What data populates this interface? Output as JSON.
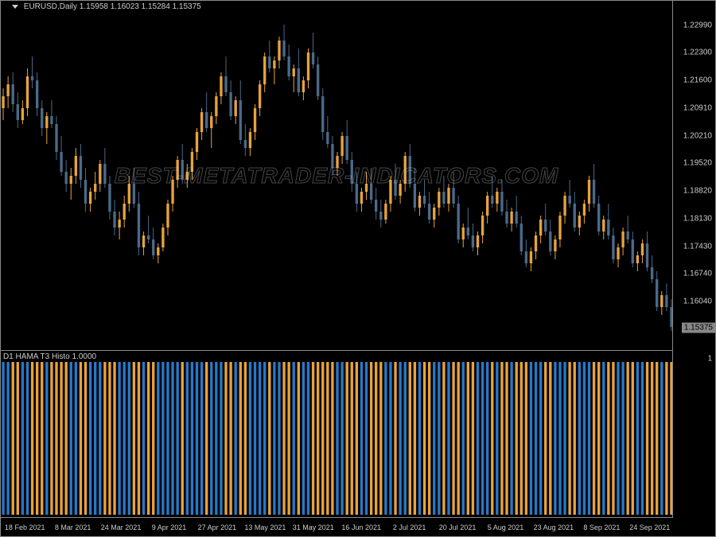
{
  "chart": {
    "title_symbol": "EURUSD,Daily",
    "title_ohlc": "1.15958 1.16023 1.15284 1.15375",
    "watermark": "BEST-METATRADER-INDICATORS.COM",
    "background_color": "#000000",
    "border_color": "#888888",
    "text_color": "#cccccc",
    "bull_color": "#e8a33c",
    "bear_color": "#4a6a8a",
    "wick_color": "#888888",
    "price_axis": {
      "ticks": [
        1.2299,
        1.223,
        1.216,
        1.2091,
        1.2021,
        1.1952,
        1.1882,
        1.1813,
        1.1743,
        1.1674,
        1.1604
      ],
      "current_badge": 1.15375,
      "min": 1.15,
      "max": 1.234
    },
    "time_axis": {
      "labels": [
        "18 Feb 2021",
        "8 Mar 2021",
        "24 Mar 2021",
        "9 Apr 2021",
        "27 Apr 2021",
        "13 May 2021",
        "31 May 2021",
        "16 Jun 2021",
        "2 Jul 2021",
        "20 Jul 2021",
        "5 Aug 2021",
        "23 Aug 2021",
        "8 Sep 2021",
        "24 Sep 2021"
      ]
    },
    "candles": [
      {
        "o": 1.209,
        "h": 1.214,
        "l": 1.206,
        "c": 1.212,
        "d": 1
      },
      {
        "o": 1.212,
        "h": 1.217,
        "l": 1.209,
        "c": 1.215,
        "d": 1
      },
      {
        "o": 1.215,
        "h": 1.218,
        "l": 1.208,
        "c": 1.21,
        "d": -1
      },
      {
        "o": 1.21,
        "h": 1.213,
        "l": 1.204,
        "c": 1.206,
        "d": -1
      },
      {
        "o": 1.206,
        "h": 1.211,
        "l": 1.205,
        "c": 1.209,
        "d": 1
      },
      {
        "o": 1.209,
        "h": 1.219,
        "l": 1.207,
        "c": 1.217,
        "d": 1
      },
      {
        "o": 1.217,
        "h": 1.222,
        "l": 1.214,
        "c": 1.216,
        "d": -1
      },
      {
        "o": 1.216,
        "h": 1.218,
        "l": 1.207,
        "c": 1.209,
        "d": -1
      },
      {
        "o": 1.209,
        "h": 1.211,
        "l": 1.202,
        "c": 1.204,
        "d": -1
      },
      {
        "o": 1.204,
        "h": 1.208,
        "l": 1.2,
        "c": 1.207,
        "d": 1
      },
      {
        "o": 1.207,
        "h": 1.211,
        "l": 1.204,
        "c": 1.205,
        "d": -1
      },
      {
        "o": 1.205,
        "h": 1.207,
        "l": 1.196,
        "c": 1.198,
        "d": -1
      },
      {
        "o": 1.198,
        "h": 1.202,
        "l": 1.192,
        "c": 1.193,
        "d": -1
      },
      {
        "o": 1.193,
        "h": 1.196,
        "l": 1.188,
        "c": 1.19,
        "d": -1
      },
      {
        "o": 1.19,
        "h": 1.194,
        "l": 1.186,
        "c": 1.192,
        "d": 1
      },
      {
        "o": 1.192,
        "h": 1.199,
        "l": 1.19,
        "c": 1.197,
        "d": 1
      },
      {
        "o": 1.197,
        "h": 1.2,
        "l": 1.189,
        "c": 1.191,
        "d": -1
      },
      {
        "o": 1.191,
        "h": 1.194,
        "l": 1.183,
        "c": 1.185,
        "d": -1
      },
      {
        "o": 1.185,
        "h": 1.189,
        "l": 1.183,
        "c": 1.188,
        "d": 1
      },
      {
        "o": 1.188,
        "h": 1.193,
        "l": 1.186,
        "c": 1.19,
        "d": 1
      },
      {
        "o": 1.19,
        "h": 1.196,
        "l": 1.188,
        "c": 1.195,
        "d": 1
      },
      {
        "o": 1.195,
        "h": 1.199,
        "l": 1.189,
        "c": 1.19,
        "d": -1
      },
      {
        "o": 1.19,
        "h": 1.192,
        "l": 1.181,
        "c": 1.183,
        "d": -1
      },
      {
        "o": 1.183,
        "h": 1.186,
        "l": 1.177,
        "c": 1.179,
        "d": -1
      },
      {
        "o": 1.179,
        "h": 1.183,
        "l": 1.176,
        "c": 1.181,
        "d": 1
      },
      {
        "o": 1.181,
        "h": 1.187,
        "l": 1.179,
        "c": 1.185,
        "d": 1
      },
      {
        "o": 1.185,
        "h": 1.192,
        "l": 1.183,
        "c": 1.19,
        "d": 1
      },
      {
        "o": 1.19,
        "h": 1.194,
        "l": 1.184,
        "c": 1.185,
        "d": -1
      },
      {
        "o": 1.185,
        "h": 1.188,
        "l": 1.172,
        "c": 1.174,
        "d": -1
      },
      {
        "o": 1.174,
        "h": 1.178,
        "l": 1.172,
        "c": 1.177,
        "d": 1
      },
      {
        "o": 1.177,
        "h": 1.182,
        "l": 1.175,
        "c": 1.176,
        "d": -1
      },
      {
        "o": 1.176,
        "h": 1.179,
        "l": 1.171,
        "c": 1.172,
        "d": -1
      },
      {
        "o": 1.172,
        "h": 1.175,
        "l": 1.17,
        "c": 1.174,
        "d": 1
      },
      {
        "o": 1.174,
        "h": 1.18,
        "l": 1.173,
        "c": 1.179,
        "d": 1
      },
      {
        "o": 1.179,
        "h": 1.186,
        "l": 1.177,
        "c": 1.185,
        "d": 1
      },
      {
        "o": 1.185,
        "h": 1.192,
        "l": 1.183,
        "c": 1.191,
        "d": 1
      },
      {
        "o": 1.191,
        "h": 1.197,
        "l": 1.189,
        "c": 1.196,
        "d": 1
      },
      {
        "o": 1.196,
        "h": 1.2,
        "l": 1.19,
        "c": 1.191,
        "d": -1
      },
      {
        "o": 1.191,
        "h": 1.195,
        "l": 1.189,
        "c": 1.193,
        "d": 1
      },
      {
        "o": 1.193,
        "h": 1.199,
        "l": 1.191,
        "c": 1.198,
        "d": 1
      },
      {
        "o": 1.198,
        "h": 1.204,
        "l": 1.196,
        "c": 1.203,
        "d": 1
      },
      {
        "o": 1.203,
        "h": 1.209,
        "l": 1.201,
        "c": 1.208,
        "d": 1
      },
      {
        "o": 1.208,
        "h": 1.213,
        "l": 1.203,
        "c": 1.204,
        "d": -1
      },
      {
        "o": 1.204,
        "h": 1.208,
        "l": 1.199,
        "c": 1.207,
        "d": 1
      },
      {
        "o": 1.207,
        "h": 1.213,
        "l": 1.205,
        "c": 1.212,
        "d": 1
      },
      {
        "o": 1.212,
        "h": 1.218,
        "l": 1.21,
        "c": 1.217,
        "d": 1
      },
      {
        "o": 1.217,
        "h": 1.222,
        "l": 1.212,
        "c": 1.213,
        "d": -1
      },
      {
        "o": 1.213,
        "h": 1.216,
        "l": 1.206,
        "c": 1.207,
        "d": -1
      },
      {
        "o": 1.207,
        "h": 1.212,
        "l": 1.205,
        "c": 1.211,
        "d": 1
      },
      {
        "o": 1.211,
        "h": 1.216,
        "l": 1.2,
        "c": 1.201,
        "d": -1
      },
      {
        "o": 1.201,
        "h": 1.205,
        "l": 1.197,
        "c": 1.199,
        "d": -1
      },
      {
        "o": 1.199,
        "h": 1.204,
        "l": 1.197,
        "c": 1.203,
        "d": 1
      },
      {
        "o": 1.203,
        "h": 1.21,
        "l": 1.201,
        "c": 1.209,
        "d": 1
      },
      {
        "o": 1.209,
        "h": 1.216,
        "l": 1.207,
        "c": 1.215,
        "d": 1
      },
      {
        "o": 1.215,
        "h": 1.223,
        "l": 1.213,
        "c": 1.222,
        "d": 1
      },
      {
        "o": 1.222,
        "h": 1.226,
        "l": 1.218,
        "c": 1.219,
        "d": -1
      },
      {
        "o": 1.219,
        "h": 1.222,
        "l": 1.215,
        "c": 1.221,
        "d": 1
      },
      {
        "o": 1.221,
        "h": 1.227,
        "l": 1.219,
        "c": 1.226,
        "d": 1
      },
      {
        "o": 1.226,
        "h": 1.23,
        "l": 1.221,
        "c": 1.222,
        "d": -1
      },
      {
        "o": 1.222,
        "h": 1.225,
        "l": 1.216,
        "c": 1.217,
        "d": -1
      },
      {
        "o": 1.217,
        "h": 1.22,
        "l": 1.213,
        "c": 1.219,
        "d": 1
      },
      {
        "o": 1.219,
        "h": 1.224,
        "l": 1.212,
        "c": 1.213,
        "d": -1
      },
      {
        "o": 1.213,
        "h": 1.217,
        "l": 1.211,
        "c": 1.216,
        "d": 1
      },
      {
        "o": 1.216,
        "h": 1.224,
        "l": 1.214,
        "c": 1.223,
        "d": 1
      },
      {
        "o": 1.223,
        "h": 1.228,
        "l": 1.219,
        "c": 1.22,
        "d": -1
      },
      {
        "o": 1.22,
        "h": 1.222,
        "l": 1.211,
        "c": 1.212,
        "d": -1
      },
      {
        "o": 1.212,
        "h": 1.214,
        "l": 1.201,
        "c": 1.203,
        "d": -1
      },
      {
        "o": 1.203,
        "h": 1.207,
        "l": 1.199,
        "c": 1.2,
        "d": -1
      },
      {
        "o": 1.2,
        "h": 1.202,
        "l": 1.192,
        "c": 1.194,
        "d": -1
      },
      {
        "o": 1.194,
        "h": 1.198,
        "l": 1.192,
        "c": 1.197,
        "d": 1
      },
      {
        "o": 1.197,
        "h": 1.203,
        "l": 1.195,
        "c": 1.202,
        "d": 1
      },
      {
        "o": 1.202,
        "h": 1.206,
        "l": 1.195,
        "c": 1.196,
        "d": -1
      },
      {
        "o": 1.196,
        "h": 1.198,
        "l": 1.188,
        "c": 1.19,
        "d": -1
      },
      {
        "o": 1.19,
        "h": 1.193,
        "l": 1.183,
        "c": 1.185,
        "d": -1
      },
      {
        "o": 1.185,
        "h": 1.189,
        "l": 1.183,
        "c": 1.188,
        "d": 1
      },
      {
        "o": 1.188,
        "h": 1.193,
        "l": 1.186,
        "c": 1.19,
        "d": 1
      },
      {
        "o": 1.19,
        "h": 1.194,
        "l": 1.185,
        "c": 1.186,
        "d": -1
      },
      {
        "o": 1.186,
        "h": 1.189,
        "l": 1.181,
        "c": 1.183,
        "d": -1
      },
      {
        "o": 1.183,
        "h": 1.186,
        "l": 1.179,
        "c": 1.181,
        "d": -1
      },
      {
        "o": 1.181,
        "h": 1.186,
        "l": 1.18,
        "c": 1.185,
        "d": 1
      },
      {
        "o": 1.185,
        "h": 1.192,
        "l": 1.183,
        "c": 1.191,
        "d": 1
      },
      {
        "o": 1.191,
        "h": 1.195,
        "l": 1.186,
        "c": 1.187,
        "d": -1
      },
      {
        "o": 1.187,
        "h": 1.191,
        "l": 1.185,
        "c": 1.19,
        "d": 1
      },
      {
        "o": 1.19,
        "h": 1.198,
        "l": 1.188,
        "c": 1.197,
        "d": 1
      },
      {
        "o": 1.197,
        "h": 1.2,
        "l": 1.189,
        "c": 1.19,
        "d": -1
      },
      {
        "o": 1.19,
        "h": 1.194,
        "l": 1.183,
        "c": 1.184,
        "d": -1
      },
      {
        "o": 1.184,
        "h": 1.188,
        "l": 1.182,
        "c": 1.187,
        "d": 1
      },
      {
        "o": 1.187,
        "h": 1.191,
        "l": 1.184,
        "c": 1.185,
        "d": -1
      },
      {
        "o": 1.185,
        "h": 1.188,
        "l": 1.18,
        "c": 1.181,
        "d": -1
      },
      {
        "o": 1.181,
        "h": 1.185,
        "l": 1.179,
        "c": 1.184,
        "d": 1
      },
      {
        "o": 1.184,
        "h": 1.189,
        "l": 1.182,
        "c": 1.188,
        "d": 1
      },
      {
        "o": 1.188,
        "h": 1.192,
        "l": 1.184,
        "c": 1.185,
        "d": -1
      },
      {
        "o": 1.185,
        "h": 1.19,
        "l": 1.183,
        "c": 1.189,
        "d": 1
      },
      {
        "o": 1.189,
        "h": 1.193,
        "l": 1.184,
        "c": 1.185,
        "d": -1
      },
      {
        "o": 1.185,
        "h": 1.187,
        "l": 1.175,
        "c": 1.176,
        "d": -1
      },
      {
        "o": 1.176,
        "h": 1.18,
        "l": 1.174,
        "c": 1.179,
        "d": 1
      },
      {
        "o": 1.179,
        "h": 1.184,
        "l": 1.176,
        "c": 1.177,
        "d": -1
      },
      {
        "o": 1.177,
        "h": 1.18,
        "l": 1.173,
        "c": 1.174,
        "d": -1
      },
      {
        "o": 1.174,
        "h": 1.178,
        "l": 1.172,
        "c": 1.177,
        "d": 1
      },
      {
        "o": 1.177,
        "h": 1.183,
        "l": 1.175,
        "c": 1.182,
        "d": 1
      },
      {
        "o": 1.182,
        "h": 1.188,
        "l": 1.18,
        "c": 1.187,
        "d": 1
      },
      {
        "o": 1.187,
        "h": 1.192,
        "l": 1.184,
        "c": 1.185,
        "d": -1
      },
      {
        "o": 1.185,
        "h": 1.189,
        "l": 1.183,
        "c": 1.188,
        "d": 1
      },
      {
        "o": 1.188,
        "h": 1.191,
        "l": 1.182,
        "c": 1.183,
        "d": -1
      },
      {
        "o": 1.183,
        "h": 1.186,
        "l": 1.179,
        "c": 1.18,
        "d": -1
      },
      {
        "o": 1.18,
        "h": 1.184,
        "l": 1.178,
        "c": 1.183,
        "d": 1
      },
      {
        "o": 1.183,
        "h": 1.187,
        "l": 1.179,
        "c": 1.18,
        "d": -1
      },
      {
        "o": 1.18,
        "h": 1.182,
        "l": 1.172,
        "c": 1.173,
        "d": -1
      },
      {
        "o": 1.173,
        "h": 1.176,
        "l": 1.169,
        "c": 1.17,
        "d": -1
      },
      {
        "o": 1.17,
        "h": 1.174,
        "l": 1.168,
        "c": 1.173,
        "d": 1
      },
      {
        "o": 1.173,
        "h": 1.178,
        "l": 1.171,
        "c": 1.177,
        "d": 1
      },
      {
        "o": 1.177,
        "h": 1.182,
        "l": 1.175,
        "c": 1.181,
        "d": 1
      },
      {
        "o": 1.181,
        "h": 1.185,
        "l": 1.177,
        "c": 1.178,
        "d": -1
      },
      {
        "o": 1.178,
        "h": 1.181,
        "l": 1.172,
        "c": 1.173,
        "d": -1
      },
      {
        "o": 1.173,
        "h": 1.177,
        "l": 1.171,
        "c": 1.176,
        "d": 1
      },
      {
        "o": 1.176,
        "h": 1.183,
        "l": 1.174,
        "c": 1.182,
        "d": 1
      },
      {
        "o": 1.182,
        "h": 1.188,
        "l": 1.18,
        "c": 1.187,
        "d": 1
      },
      {
        "o": 1.187,
        "h": 1.191,
        "l": 1.184,
        "c": 1.185,
        "d": -1
      },
      {
        "o": 1.185,
        "h": 1.188,
        "l": 1.178,
        "c": 1.179,
        "d": -1
      },
      {
        "o": 1.179,
        "h": 1.183,
        "l": 1.177,
        "c": 1.182,
        "d": 1
      },
      {
        "o": 1.182,
        "h": 1.186,
        "l": 1.18,
        "c": 1.185,
        "d": 1
      },
      {
        "o": 1.185,
        "h": 1.192,
        "l": 1.183,
        "c": 1.191,
        "d": 1
      },
      {
        "o": 1.191,
        "h": 1.195,
        "l": 1.184,
        "c": 1.185,
        "d": -1
      },
      {
        "o": 1.185,
        "h": 1.187,
        "l": 1.177,
        "c": 1.178,
        "d": -1
      },
      {
        "o": 1.178,
        "h": 1.182,
        "l": 1.176,
        "c": 1.181,
        "d": 1
      },
      {
        "o": 1.181,
        "h": 1.185,
        "l": 1.176,
        "c": 1.177,
        "d": -1
      },
      {
        "o": 1.177,
        "h": 1.179,
        "l": 1.17,
        "c": 1.171,
        "d": -1
      },
      {
        "o": 1.171,
        "h": 1.175,
        "l": 1.169,
        "c": 1.174,
        "d": 1
      },
      {
        "o": 1.174,
        "h": 1.179,
        "l": 1.172,
        "c": 1.178,
        "d": 1
      },
      {
        "o": 1.178,
        "h": 1.182,
        "l": 1.175,
        "c": 1.176,
        "d": -1
      },
      {
        "o": 1.176,
        "h": 1.178,
        "l": 1.169,
        "c": 1.17,
        "d": -1
      },
      {
        "o": 1.17,
        "h": 1.173,
        "l": 1.168,
        "c": 1.172,
        "d": 1
      },
      {
        "o": 1.172,
        "h": 1.176,
        "l": 1.17,
        "c": 1.175,
        "d": 1
      },
      {
        "o": 1.175,
        "h": 1.178,
        "l": 1.168,
        "c": 1.169,
        "d": -1
      },
      {
        "o": 1.169,
        "h": 1.172,
        "l": 1.165,
        "c": 1.166,
        "d": -1
      },
      {
        "o": 1.166,
        "h": 1.168,
        "l": 1.158,
        "c": 1.159,
        "d": -1
      },
      {
        "o": 1.159,
        "h": 1.163,
        "l": 1.157,
        "c": 1.162,
        "d": 1
      },
      {
        "o": 1.162,
        "h": 1.165,
        "l": 1.158,
        "c": 1.159,
        "d": -1
      },
      {
        "o": 1.159,
        "h": 1.161,
        "l": 1.153,
        "c": 1.154,
        "d": -1
      }
    ]
  },
  "indicator": {
    "title": "D1 HAMA T3 Histo 1.0000",
    "axis_label": "1",
    "blue_color": "#2878c8",
    "orange_color": "#e8a33c",
    "bars": [
      1,
      1,
      -1,
      -1,
      1,
      1,
      -1,
      -1,
      -1,
      1,
      -1,
      -1,
      -1,
      -1,
      1,
      1,
      -1,
      -1,
      1,
      1,
      1,
      -1,
      -1,
      -1,
      1,
      1,
      1,
      -1,
      -1,
      1,
      -1,
      -1,
      1,
      1,
      1,
      1,
      1,
      -1,
      1,
      1,
      1,
      1,
      -1,
      1,
      1,
      1,
      -1,
      -1,
      1,
      -1,
      -1,
      1,
      1,
      1,
      1,
      -1,
      1,
      1,
      -1,
      -1,
      1,
      -1,
      1,
      1,
      -1,
      -1,
      -1,
      -1,
      -1,
      1,
      1,
      -1,
      -1,
      -1,
      1,
      1,
      -1,
      -1,
      -1,
      1,
      1,
      -1,
      1,
      1,
      -1,
      -1,
      1,
      -1,
      -1,
      1,
      1,
      -1,
      1,
      -1,
      -1,
      1,
      -1,
      -1,
      1,
      1,
      1,
      -1,
      1,
      -1,
      -1,
      1,
      -1,
      -1,
      -1,
      1,
      1,
      1,
      -1,
      -1,
      1,
      1,
      1,
      -1,
      -1,
      1,
      1,
      1,
      -1,
      -1,
      1,
      -1,
      -1,
      1,
      1,
      -1,
      -1,
      1,
      1,
      -1,
      -1,
      -1,
      1,
      -1,
      -1
    ]
  }
}
